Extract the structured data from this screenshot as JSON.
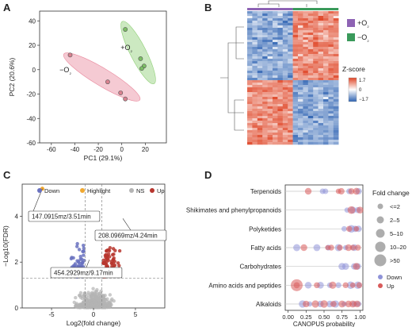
{
  "panels": {
    "A": "A",
    "B": "B",
    "C": "C",
    "D": "D"
  },
  "chart_data": [
    {
      "panel": "A",
      "type": "scatter",
      "xlabel": "PC1 (29.1%)",
      "ylabel": "PC2 (20.6%)",
      "xlim": [
        -70,
        38
      ],
      "ylim": [
        -60,
        48
      ],
      "xticks": [
        -60,
        -40,
        -20,
        0,
        20
      ],
      "yticks": [
        -60,
        -40,
        -20,
        0,
        20,
        40
      ],
      "colors": {
        "-O2": "#e9899d",
        "+O2": "#8fcf76"
      },
      "series": [
        {
          "name": "−O₂",
          "points": [
            [
              -44,
              12
            ],
            [
              -12,
              -10
            ],
            [
              -1,
              -19
            ],
            [
              3,
              -24
            ]
          ]
        },
        {
          "name": "+O₂",
          "points": [
            [
              3,
              33
            ],
            [
              16,
              9
            ],
            [
              19,
              3
            ],
            [
              17,
              1
            ]
          ]
        }
      ],
      "group_labels": [
        "+O₂",
        "−O₂"
      ]
    },
    {
      "panel": "B",
      "type": "heatmap",
      "legend_title": "Z-score",
      "scale_labels": [
        "1.7",
        "0",
        "−1.7"
      ],
      "groups": [
        {
          "name": "+O₂",
          "color": "#8e63b4"
        },
        {
          "name": "−O₂",
          "color": "#3a9a5b"
        }
      ]
    },
    {
      "panel": "C",
      "type": "scatter",
      "xlabel": "Log2(fold change)",
      "ylabel": "−Log10(FDR)",
      "xlim": [
        -8.5,
        8.5
      ],
      "ylim": [
        0,
        5.4
      ],
      "xticks": [
        -5,
        0,
        5
      ],
      "yticks": [
        0,
        2,
        4
      ],
      "thresholds": {
        "x": [
          -1,
          1
        ],
        "y": 1.3
      },
      "legend": [
        {
          "label": "Down",
          "color": "#6a72c0"
        },
        {
          "label": "Highlight",
          "color": "#f0a830"
        },
        {
          "label": "NS",
          "color": "#b4b4b4"
        },
        {
          "label": "Up",
          "color": "#b7362e"
        }
      ],
      "highlight_point": [
        -6.1,
        5.2
      ],
      "annotations": [
        "147.0915mz/3.51min",
        "208.0969mz/4.24min",
        "454.2929mz/9.17min"
      ]
    },
    {
      "panel": "D",
      "type": "scatter",
      "xlabel": "CANOPUS probability",
      "xticks": [
        "0.00",
        "0.25",
        "0.50",
        "0.75",
        "1.00"
      ],
      "categories": [
        "Terpenoids",
        "Shikimates and phenylpropanoids",
        "Polyketides",
        "Fatty acids",
        "Carbohydrates",
        "Amino acids and peptides",
        "Alkaloids"
      ],
      "size_legend_title": "Fold change",
      "size_legend": [
        "<=2",
        "2–5",
        "5–10",
        "10–20",
        ">50"
      ],
      "color_legend": [
        {
          "label": "Down",
          "color": "#8f93d8"
        },
        {
          "label": "Up",
          "color": "#d85a5a"
        }
      ],
      "points": {
        "Terpenoids": {
          "down": [
            0.48,
            0.52,
            0.85,
            0.98
          ],
          "up": [
            0.28,
            0.7,
            0.74,
            0.88,
            0.95
          ]
        },
        "Shikimates and phenylpropanoids": {
          "down": [
            0.82,
            0.9,
            0.97
          ],
          "up": [
            0.88,
            1.0
          ]
        },
        "Polyketides": {
          "down": [
            0.78,
            0.88,
            0.93,
            0.98
          ],
          "up": [
            0.85,
            0.95
          ]
        },
        "Fatty acids": {
          "down": [
            0.12,
            0.4,
            0.56,
            0.7,
            0.8,
            0.92
          ],
          "up": [
            0.22,
            0.55,
            0.6,
            0.72,
            0.84,
            0.9,
            0.97
          ]
        },
        "Carbohydrates": {
          "down": [
            0.75,
            0.8,
            0.92,
            0.97
          ],
          "up": [
            0.95
          ]
        },
        "Amino acids and peptides": {
          "down": [
            0.28,
            0.45,
            0.58,
            0.7,
            0.87,
            0.97
          ],
          "up": [
            0.12,
            0.4,
            0.62,
            0.8,
            0.9,
            0.99
          ]
        },
        "Alkaloids": {
          "down": [
            0.2,
            0.3,
            0.45,
            0.58,
            0.66,
            0.78,
            0.92,
            0.98
          ],
          "up": [
            0.25,
            0.38,
            0.5,
            0.63,
            0.75,
            0.84,
            0.9,
            0.96
          ]
        }
      }
    }
  ]
}
